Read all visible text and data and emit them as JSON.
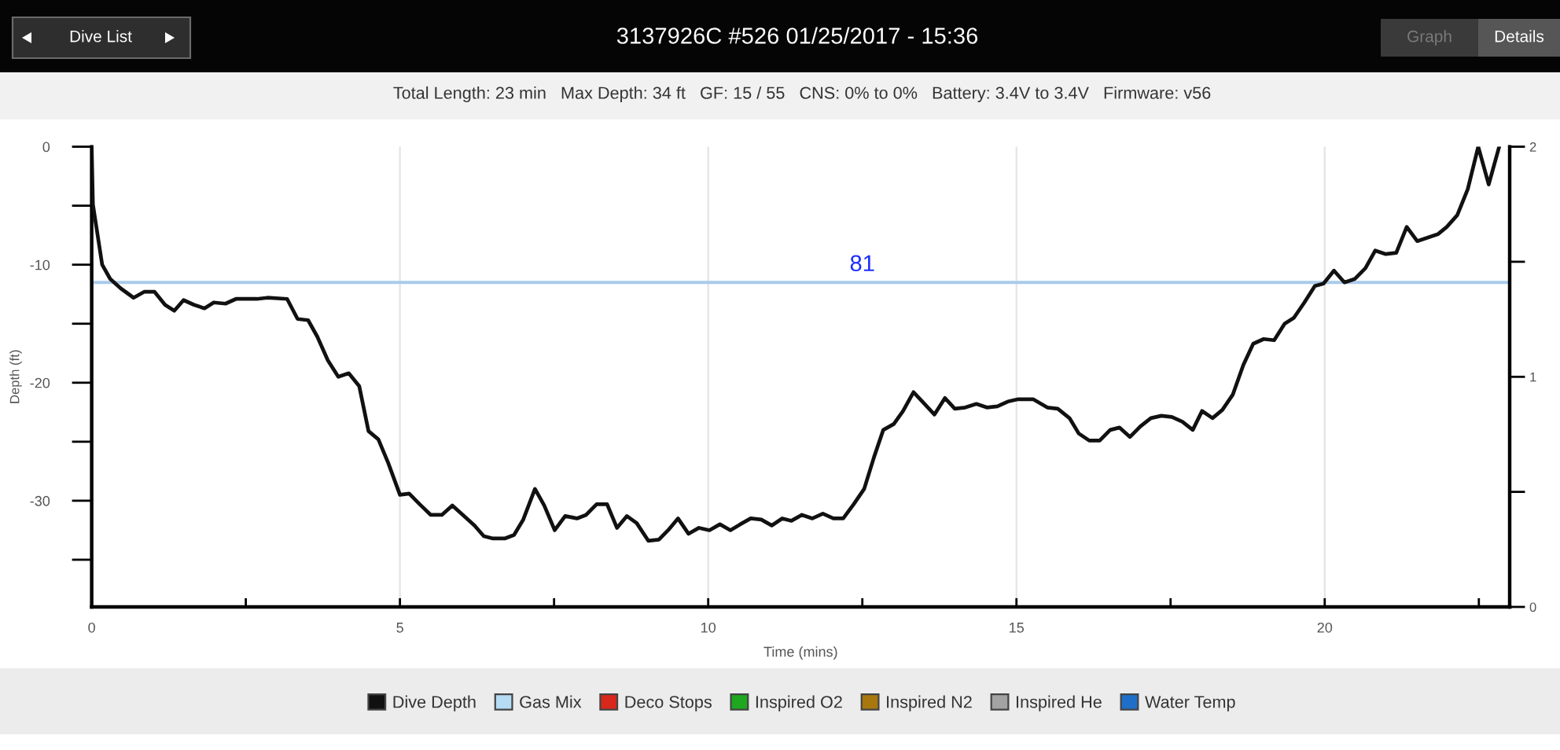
{
  "chart_data": {
    "type": "line",
    "title": "3137926C #526 01/25/2017 - 15:36",
    "subtitle": "Total Length: 23 min   Max Depth: 34 ft   GF: 15 / 55   CNS: 0% to 0%   Battery: 3.4V to 3.4V   Firmware: v56",
    "xlabel": "Time (mins)",
    "ylabel": "Depth (ft)",
    "annotations": [
      "Dive List",
      "Graph",
      "Details",
      {
        "text": "81",
        "x": 12.5,
        "y": -11.5
      }
    ],
    "series": [
      {
        "name": "Dive Depth",
        "color": "#111111",
        "x": [
          0,
          0.02,
          0.17,
          0.3,
          0.47,
          0.68,
          0.85,
          1.02,
          1.19,
          1.34,
          1.49,
          1.66,
          1.83,
          1.98,
          2.17,
          2.34,
          2.68,
          2.85,
          3.17,
          3.34,
          3.51,
          3.66,
          3.83,
          4.0,
          4.17,
          4.34,
          4.49,
          4.65,
          4.81,
          5.0,
          5.15,
          5.32,
          5.5,
          5.68,
          5.85,
          6.02,
          6.21,
          6.36,
          6.51,
          6.7,
          6.85,
          7.0,
          7.19,
          7.34,
          7.51,
          7.68,
          7.87,
          8.02,
          8.19,
          8.36,
          8.52,
          8.68,
          8.84,
          9.03,
          9.2,
          9.35,
          9.51,
          9.68,
          9.85,
          10.02,
          10.19,
          10.36,
          10.52,
          10.69,
          10.86,
          11.03,
          11.2,
          11.35,
          11.52,
          11.69,
          11.86,
          12.03,
          12.19,
          12.36,
          12.53,
          12.69,
          12.84,
          13.01,
          13.16,
          13.33,
          13.51,
          13.67,
          13.84,
          14.0,
          14.17,
          14.35,
          14.52,
          14.69,
          14.86,
          15.03,
          15.27,
          15.5,
          15.67,
          15.86,
          16.01,
          16.18,
          16.35,
          16.52,
          16.67,
          16.84,
          17.01,
          17.18,
          17.35,
          17.52,
          17.69,
          17.86,
          18.01,
          18.18,
          18.34,
          18.51,
          18.68,
          18.84,
          19.01,
          19.18,
          19.35,
          19.5,
          19.67,
          19.84,
          19.98,
          20.15,
          20.32,
          20.49,
          20.66,
          20.82,
          20.99,
          21.16,
          21.33,
          21.5,
          21.67,
          21.84,
          21.98,
          22.15,
          22.32,
          22.49,
          22.66,
          22.83
        ],
        "values": [
          0,
          -4.9,
          -10.0,
          -11.2,
          -12.0,
          -12.8,
          -12.3,
          -12.3,
          -13.4,
          -13.9,
          -13.0,
          -13.4,
          -13.7,
          -13.2,
          -13.3,
          -12.9,
          -12.9,
          -12.8,
          -12.9,
          -14.6,
          -14.7,
          -16.1,
          -18.1,
          -19.5,
          -19.2,
          -20.3,
          -24.1,
          -24.8,
          -26.8,
          -29.5,
          -29.4,
          -30.3,
          -31.2,
          -31.2,
          -30.4,
          -31.2,
          -32.1,
          -33.0,
          -33.2,
          -33.2,
          -32.9,
          -31.6,
          -29.0,
          -30.4,
          -32.5,
          -31.3,
          -31.5,
          -31.2,
          -30.3,
          -30.3,
          -32.3,
          -31.3,
          -31.9,
          -33.4,
          -33.3,
          -32.5,
          -31.5,
          -32.8,
          -32.3,
          -32.5,
          -32.0,
          -32.5,
          -32.0,
          -31.5,
          -31.6,
          -32.1,
          -31.5,
          -31.7,
          -31.2,
          -31.5,
          -31.1,
          -31.5,
          -31.5,
          -30.3,
          -29.0,
          -26.3,
          -24.0,
          -23.5,
          -22.4,
          -20.8,
          -21.8,
          -22.7,
          -21.3,
          -22.2,
          -22.1,
          -21.8,
          -22.1,
          -22.0,
          -21.6,
          -21.4,
          -21.4,
          -22.1,
          -22.2,
          -23.0,
          -24.3,
          -24.9,
          -24.9,
          -24.0,
          -23.8,
          -24.6,
          -23.7,
          -23.0,
          -22.8,
          -22.9,
          -23.3,
          -24.0,
          -22.4,
          -23.0,
          -22.3,
          -21.0,
          -18.5,
          -16.7,
          -16.3,
          -16.4,
          -15.0,
          -14.5,
          -13.2,
          -11.8,
          -11.6,
          -10.5,
          -11.5,
          -11.2,
          -10.3,
          -8.8,
          -9.1,
          -9.0,
          -6.8,
          -8.0,
          -7.7,
          -7.4,
          -6.8,
          -5.8,
          -3.6,
          0,
          -3.2,
          0
        ]
      },
      {
        "name": "Gas Mix",
        "color": "#b6dbf5"
      },
      {
        "name": "Deco Stops",
        "color": "#d8281c"
      },
      {
        "name": "Inspired O2",
        "color": "#1fa81f"
      },
      {
        "name": "Inspired N2",
        "color": "#a8780e"
      },
      {
        "name": "Inspired He",
        "color": "#a3a3a3"
      },
      {
        "name": "Water Temp",
        "color": "#1f6fc9"
      }
    ],
    "xlim": [
      0,
      23
    ],
    "xticks": [
      0,
      {
        "value": 2.5,
        "label": null
      },
      5,
      {
        "value": 7.5,
        "label": null
      },
      10,
      {
        "value": 12.5,
        "label": null
      },
      15,
      {
        "value": 17.5,
        "label": null
      },
      20,
      {
        "value": 22.5,
        "label": null
      }
    ],
    "ylim": [
      -39,
      0
    ],
    "yticks": [
      {
        "value": -35,
        "label": null
      },
      -30,
      {
        "value": -25,
        "label": null
      },
      -20,
      {
        "value": -15,
        "label": null
      },
      -10,
      {
        "value": -5,
        "label": null
      },
      0
    ],
    "y2lim": [
      0,
      2
    ],
    "y2ticks": [
      0,
      {
        "value": 0.5,
        "label": null
      },
      1,
      {
        "value": 1.5,
        "label": null
      },
      2
    ],
    "ref_lines": [
      {
        "axis": "y",
        "value": -11.5,
        "color": "#a9cbeb"
      }
    ],
    "grid": "x",
    "legend": "bottom"
  }
}
